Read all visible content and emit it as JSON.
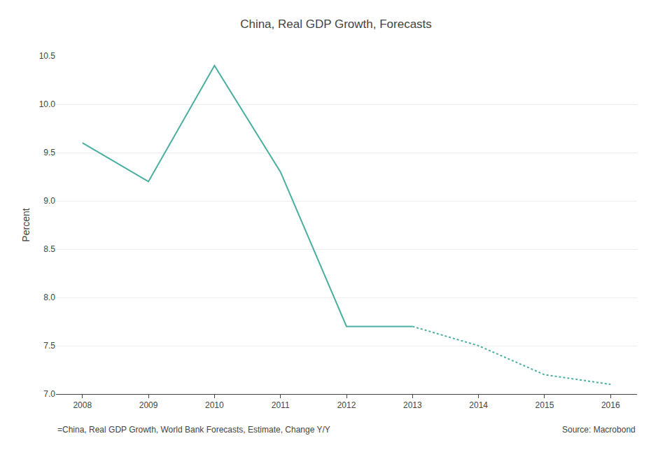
{
  "chart_data": {
    "type": "line",
    "title": "China, Real GDP Growth, Forecasts",
    "ylabel": "Percent",
    "series": [
      {
        "x": [
          2008,
          2009,
          2010,
          2011,
          2012,
          2013
        ],
        "values": [
          9.6,
          9.2,
          10.4,
          9.3,
          7.7,
          7.7
        ],
        "color": "#4aafa0",
        "line_style": "solid"
      },
      {
        "x": [
          2013,
          2014,
          2015,
          2016
        ],
        "values": [
          7.7,
          7.5,
          7.2,
          7.1
        ],
        "color": "#4aafa0",
        "line_style": "dotted"
      }
    ],
    "xlim": [
      2007.6,
      2016.4
    ],
    "xticks": [
      2008,
      2009,
      2010,
      2011,
      2012,
      2013,
      2014,
      2015,
      2016
    ],
    "ylim": [
      7.0,
      10.5
    ],
    "yticks": [
      {
        "value": 7,
        "label": "7.0"
      },
      7.5,
      {
        "value": 8,
        "label": "8.0"
      },
      8.5,
      {
        "value": 9,
        "label": "9.0"
      },
      9.5,
      {
        "value": 10,
        "label": "10.0"
      },
      10.5
    ],
    "grid": "y",
    "annotations": [
      "=China, Real GDP Growth, World Bank Forecasts, Estimate, Change Y/Y",
      "Source: Macrobond"
    ]
  }
}
